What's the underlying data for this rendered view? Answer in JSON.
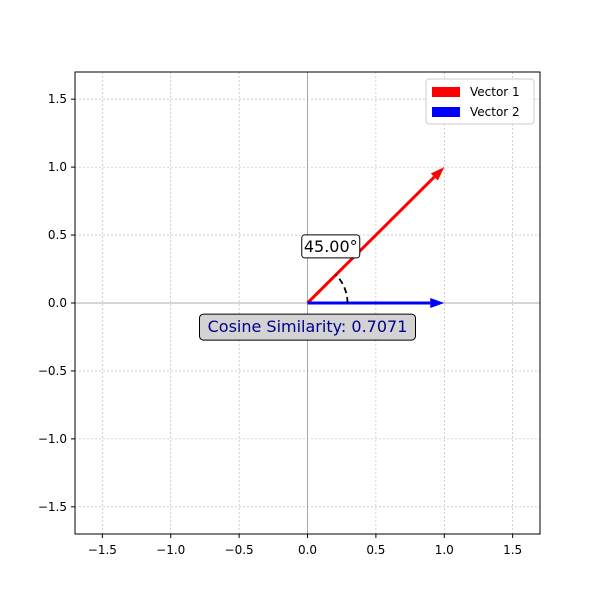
{
  "chart_data": {
    "type": "vector",
    "title": "",
    "xlabel": "",
    "ylabel": "",
    "xlim": [
      -1.7,
      1.7
    ],
    "ylim": [
      -1.7,
      1.7
    ],
    "x_ticks": [
      -1.5,
      -1.0,
      -0.5,
      0.0,
      0.5,
      1.0,
      1.5
    ],
    "y_ticks": [
      -1.5,
      -1.0,
      -0.5,
      0.0,
      0.5,
      1.0,
      1.5
    ],
    "x_tick_labels": [
      "−1.5",
      "−1.0",
      "−0.5",
      "0.0",
      "0.5",
      "1.0",
      "1.5"
    ],
    "y_tick_labels": [
      "−1.5",
      "−1.0",
      "−0.5",
      "0.0",
      "0.5",
      "1.0",
      "1.5"
    ],
    "grid": true,
    "legend_position": "top-right",
    "series": [
      {
        "name": "Vector 1",
        "start": [
          0,
          0
        ],
        "end": [
          1,
          1
        ],
        "color": "#ff0000"
      },
      {
        "name": "Vector 2",
        "start": [
          0,
          0
        ],
        "end": [
          1,
          0
        ],
        "color": "#0000ff"
      }
    ],
    "angle_degrees": 45,
    "angle_label": "45.00°",
    "angle_label_pos": [
      0.17,
      0.42
    ],
    "cosine_similarity": 0.7071,
    "cosine_label": "Cosine Similarity: 0.7071",
    "cosine_label_pos": [
      0.0,
      -0.17
    ],
    "cosine_label_color": "#00008b"
  }
}
